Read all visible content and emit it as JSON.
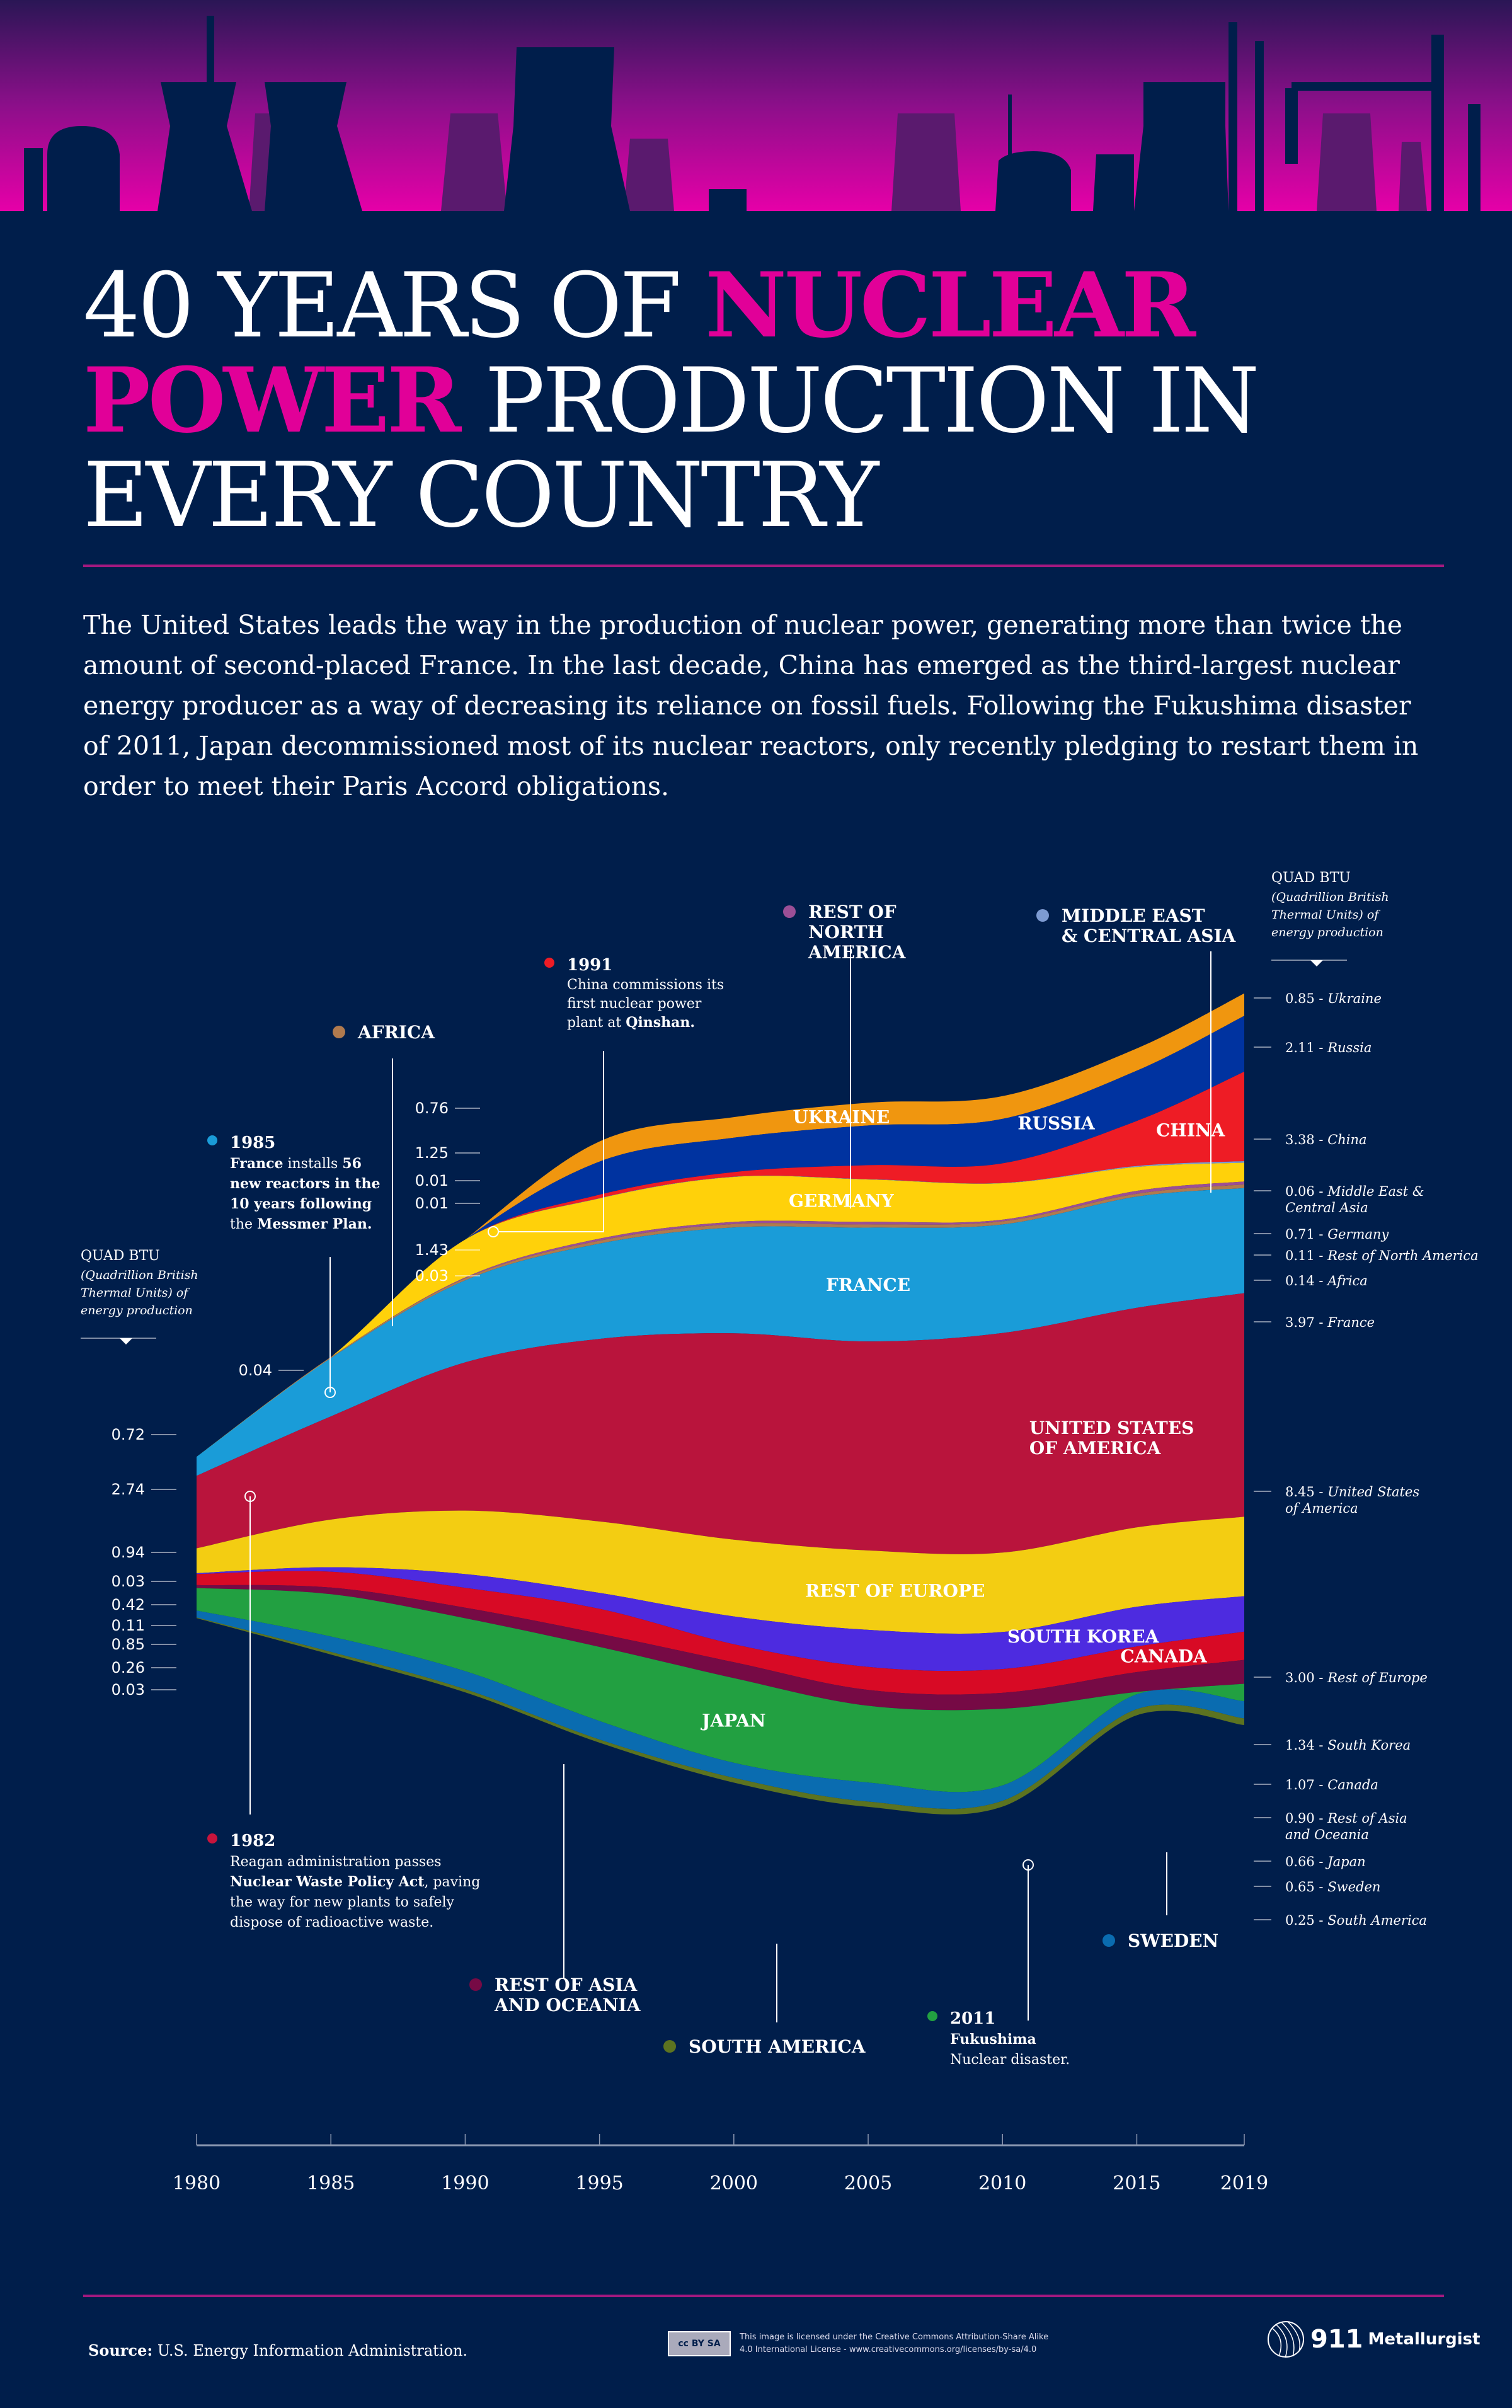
{
  "header": {
    "title_part1": "40 YEARS OF ",
    "title_highlight1": "NUCLEAR",
    "title_highlight2": "POWER",
    "title_part2": " PRODUCTION IN",
    "title_part3": "EVERY COUNTRY",
    "intro": "The United States leads the way in the production of nuclear power, generating more than twice the amount of second-placed France. In the last decade, China has emerged as the third-largest nuclear energy producer as a way of decreasing its reliance on fossil fuels. Following the Fukushima disaster of 2011, Japan decommissioned most of its nuclear reactors, only recently pledging to restart them in order to meet their Paris Accord obligations."
  },
  "colors": {
    "background": "#001e4b",
    "accent": "#e10098"
  },
  "unit_label": {
    "title": "QUAD BTU",
    "line1": "(Quadrillion British",
    "line2": "Thermal Units) of",
    "line3": "energy production"
  },
  "chart_data": {
    "type": "area",
    "subtype": "streamgraph",
    "title": "40 Years of Nuclear Power Production in Every Country",
    "ylabel": "Quad BTU (Quadrillion British Thermal Units) of energy production",
    "xlabel": "",
    "x": [
      1980,
      1985,
      1990,
      1995,
      2000,
      2005,
      2010,
      2015,
      2019
    ],
    "x_ticks": [
      "1980",
      "1985",
      "1990",
      "1995",
      "2000",
      "2005",
      "2010",
      "2015",
      "2019"
    ],
    "series": [
      {
        "name": "Ukraine",
        "label": "UKRAINE",
        "color": "#f0960f",
        "values": [
          0,
          0,
          0,
          0.76,
          0.78,
          0.86,
          0.86,
          0.84,
          0.85
        ]
      },
      {
        "name": "Russia",
        "label": "RUSSIA",
        "color": "#0033a0",
        "values": [
          0,
          0,
          0,
          1.25,
          1.3,
          1.5,
          1.68,
          1.9,
          2.11
        ]
      },
      {
        "name": "China",
        "label": "CHINA",
        "color": "#ee1c25",
        "values": [
          0,
          0,
          0,
          0.13,
          0.17,
          0.53,
          0.74,
          1.7,
          3.38
        ]
      },
      {
        "name": "Middle East & Central Asia",
        "label": "MIDDLE EAST & CENTRAL ASIA",
        "color": "#7d9bd2",
        "values": [
          0,
          0,
          0,
          0.01,
          0.01,
          0.01,
          0.01,
          0.04,
          0.06
        ]
      },
      {
        "name": "Germany",
        "label": "GERMANY",
        "color": "#ffd10a",
        "values": [
          0,
          0,
          1.43,
          1.52,
          1.7,
          1.6,
          1.38,
          0.9,
          0.71
        ]
      },
      {
        "name": "Rest of North America",
        "label": "REST OF NORTH AMERICA",
        "color": "#9b4f96",
        "values": [
          0,
          0,
          0.03,
          0.08,
          0.08,
          0.1,
          0.06,
          0.11,
          0.11
        ]
      },
      {
        "name": "Africa",
        "label": "AFRICA",
        "color": "#b07a4e",
        "values": [
          0,
          0.04,
          0.08,
          0.11,
          0.13,
          0.12,
          0.12,
          0.11,
          0.14
        ]
      },
      {
        "name": "France",
        "label": "FRANCE",
        "color": "#1a9cd8",
        "values": [
          0.72,
          2.2,
          3.1,
          3.6,
          4.0,
          4.3,
          4.1,
          4.2,
          3.97
        ]
      },
      {
        "name": "United States of America",
        "label": "UNITED STATES OF AMERICA",
        "color": "#b9143c",
        "values": [
          2.74,
          3.9,
          5.6,
          6.9,
          7.8,
          7.9,
          8.3,
          8.3,
          8.45
        ]
      },
      {
        "name": "Rest of Europe",
        "label": "REST OF EUROPE",
        "color": "#f3cd12",
        "values": [
          0.94,
          1.8,
          2.4,
          2.7,
          2.9,
          3.0,
          3.0,
          3.0,
          3.0
        ]
      },
      {
        "name": "South Korea",
        "label": "SOUTH KOREA",
        "color": "#4d2be0",
        "values": [
          0.03,
          0.17,
          0.52,
          0.6,
          1.05,
          1.4,
          1.4,
          1.5,
          1.34
        ]
      },
      {
        "name": "Canada",
        "label": "CANADA",
        "color": "#d80a25",
        "values": [
          0.42,
          0.6,
          0.75,
          0.94,
          0.68,
          0.87,
          0.9,
          0.97,
          1.07
        ]
      },
      {
        "name": "Rest of Asia and Oceania",
        "label": "REST OF ASIA AND OCEANIA",
        "color": "#760a45",
        "values": [
          0.11,
          0.25,
          0.4,
          0.5,
          0.6,
          0.6,
          0.6,
          0.75,
          0.9
        ]
      },
      {
        "name": "Japan",
        "label": "JAPAN",
        "color": "#22a041",
        "values": [
          0.85,
          1.6,
          2.0,
          2.8,
          3.2,
          2.9,
          2.9,
          0.09,
          0.66
        ]
      },
      {
        "name": "Sweden",
        "label": "SWEDEN",
        "color": "#0a6cb0",
        "values": [
          0.26,
          0.58,
          0.68,
          0.7,
          0.57,
          0.72,
          0.58,
          0.56,
          0.65
        ]
      },
      {
        "name": "South America",
        "label": "SOUTH AMERICA",
        "color": "#5c7320",
        "values": [
          0.03,
          0.1,
          0.12,
          0.12,
          0.18,
          0.2,
          0.22,
          0.23,
          0.25
        ]
      }
    ],
    "start_labels": [
      {
        "value": "0.72",
        "series": "France"
      },
      {
        "value": "2.74",
        "series": "United States of America"
      },
      {
        "value": "0.94",
        "series": "Rest of Europe"
      },
      {
        "value": "0.03",
        "series": "South Korea"
      },
      {
        "value": "0.42",
        "series": "Canada"
      },
      {
        "value": "0.11",
        "series": "Rest of Asia and Oceania"
      },
      {
        "value": "0.85",
        "series": "Japan"
      },
      {
        "value": "0.26",
        "series": "Sweden"
      },
      {
        "value": "0.03",
        "series": "South America"
      },
      {
        "value": "0.04",
        "series": "Africa"
      },
      {
        "value": "0.76",
        "series": "Ukraine"
      },
      {
        "value": "1.25",
        "series": "Russia"
      },
      {
        "value": "0.01",
        "series": "China"
      },
      {
        "value": "0.01",
        "series": "Middle East & Central Asia"
      },
      {
        "value": "1.43",
        "series": "Germany"
      },
      {
        "value": "0.03",
        "series": "Rest of North America"
      }
    ],
    "end_labels": [
      {
        "value": "0.85",
        "name": "Ukraine"
      },
      {
        "value": "2.11",
        "name": "Russia"
      },
      {
        "value": "3.38",
        "name": "China"
      },
      {
        "value": "0.06",
        "name": "Middle East &",
        "name2": "Central Asia"
      },
      {
        "value": "0.71",
        "name": "Germany"
      },
      {
        "value": "0.11",
        "name": "Rest of North America"
      },
      {
        "value": "0.14",
        "name": "Africa"
      },
      {
        "value": "3.97",
        "name": "France"
      },
      {
        "value": "8.45",
        "name": "United States",
        "name2": "of America"
      },
      {
        "value": "3.00",
        "name": "Rest of Europe"
      },
      {
        "value": "1.34",
        "name": "South Korea"
      },
      {
        "value": "1.07",
        "name": "Canada"
      },
      {
        "value": "0.90",
        "name": "Rest of Asia",
        "name2": "and Oceania"
      },
      {
        "value": "0.66",
        "name": "Japan"
      },
      {
        "value": "0.65",
        "name": "Sweden"
      },
      {
        "value": "0.25",
        "name": "South America"
      }
    ],
    "legend_callouts": [
      {
        "label": "AFRICA",
        "color": "#b07a4e"
      },
      {
        "label1": "REST OF",
        "label2": "NORTH",
        "label3": "AMERICA",
        "color": "#9b4f96"
      },
      {
        "label1": "MIDDLE EAST",
        "label2": "& CENTRAL ASIA",
        "color": "#7d9bd2"
      },
      {
        "label1": "REST OF ASIA",
        "label2": "AND OCEANIA",
        "color": "#760a45"
      },
      {
        "label": "SOUTH AMERICA",
        "color": "#5c7320"
      },
      {
        "label": "SWEDEN",
        "color": "#0a6cb0"
      }
    ],
    "annotations": [
      {
        "year": "1985",
        "color": "#1a9cd8",
        "lines": [
          [
            "France",
            " installs ",
            "56"
          ],
          [
            "new reactors in the"
          ],
          [
            "10 years following"
          ],
          [
            "the ",
            "Messmer Plan."
          ]
        ]
      },
      {
        "year": "1991",
        "color": "#ee1c25",
        "lines": [
          [
            "China commissions its"
          ],
          [
            "first nuclear power"
          ],
          [
            "plant at ",
            "Qinshan."
          ]
        ]
      },
      {
        "year": "1982",
        "color": "#c8143c",
        "lines": [
          [
            "Reagan administration passes"
          ],
          [
            "Nuclear Waste Policy Act",
            ", paving"
          ],
          [
            "the way for new plants to safely"
          ],
          [
            "dispose of radioactive waste."
          ]
        ]
      },
      {
        "year": "2011",
        "color": "#22a041",
        "lines": [
          [
            "Fukushima"
          ],
          [
            "Nuclear disaster."
          ]
        ]
      }
    ]
  },
  "footer": {
    "source_label": "Source:",
    "source_text": " U.S. Energy Information Administration.",
    "license_line1": "This image is licensed under the Creative Commons Attribution-Share Alike",
    "license_line2": "4.0 International License - www.creativecommons.org/licenses/by-sa/4.0",
    "cc_badge": "cc BY SA",
    "logo_number": "911",
    "logo_name": "Metallurgist"
  }
}
